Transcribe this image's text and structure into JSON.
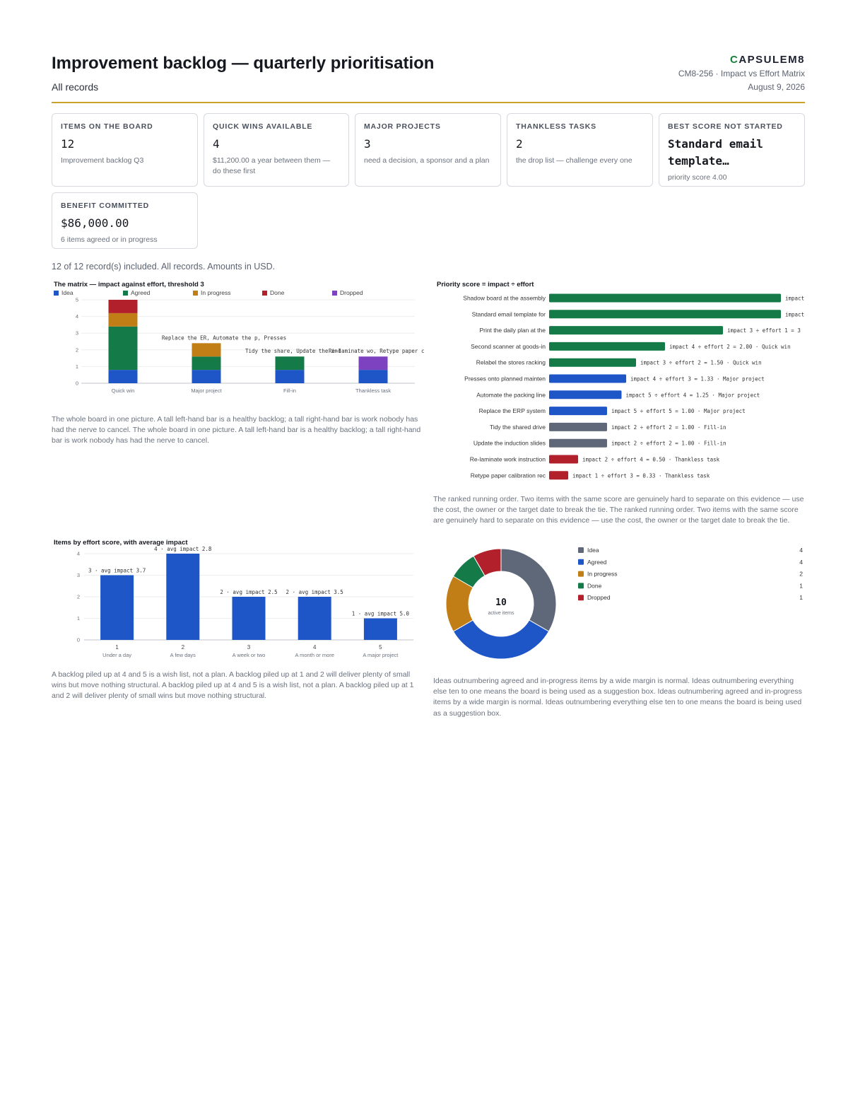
{
  "header": {
    "title": "Improvement backlog — quarterly prioritisation",
    "subtitle": "All records",
    "brand_first": "C",
    "brand_rest": "APSULEM8",
    "reference": "CM8-256 · Impact vs Effort Matrix",
    "date": "August 9, 2026"
  },
  "kpis": [
    {
      "label": "Items on the board",
      "value": "12",
      "note": "Improvement backlog Q3"
    },
    {
      "label": "Quick wins available",
      "value": "4",
      "note": "$11,200.00 a year between them — do these first"
    },
    {
      "label": "Major projects",
      "value": "3",
      "note": "need a decision, a sponsor and a plan"
    },
    {
      "label": "Thankless tasks",
      "value": "2",
      "note": "the drop list — challenge every one"
    },
    {
      "label": "Best score not started",
      "value": "Standard email template…",
      "note": "priority score 4.00"
    },
    {
      "label": "Benefit committed",
      "value": "$86,000.00",
      "note": "6 items agreed or in progress"
    }
  ],
  "scope_note": "12 of 12 record(s) included. All records. Amounts in USD.",
  "colors": {
    "idea": "#1e56c8",
    "agreed": "#137a48",
    "in_progress": "#c17d16",
    "done": "#b2202b",
    "dropped": "#7c42bf",
    "grey": "#5e6878",
    "accent": "#c9a227"
  },
  "captions": {
    "matrix": "The whole board in one picture. A tall left-hand bar is a healthy backlog; a tall right-hand bar is work nobody has had the nerve to cancel. The whole board in one picture. A tall left-hand bar is a healthy backlog; a tall right-hand bar is work nobody has had the nerve to cancel.",
    "priority": "The ranked running order. Two items with the same score are genuinely hard to separate on this evidence — use the cost, the owner or the target date to break the tie. The ranked running order. Two items with the same score are genuinely hard to separate on this evidence — use the cost, the owner or the target date to break the tie.",
    "effort": "A backlog piled up at 4 and 5 is a wish list, not a plan. A backlog piled up at 1 and 2 will deliver plenty of small wins but move nothing structural. A backlog piled up at 4 and 5 is a wish list, not a plan. A backlog piled up at 1 and 2 will deliver plenty of small wins but move nothing structural.",
    "status": "Ideas outnumbering agreed and in-progress items by a wide margin is normal. Ideas outnumbering everything else ten to one means the board is being used as a suggestion box. Ideas outnumbering agreed and in-progress items by a wide margin is normal. Ideas outnumbering everything else ten to one means the board is being used as a suggestion box."
  },
  "chart_data": [
    {
      "type": "bar",
      "stacked": true,
      "title": "The matrix — impact against effort, threshold 3",
      "categories": [
        "Quick win",
        "Major project",
        "Fill-in",
        "Thankless task"
      ],
      "series": [
        {
          "name": "Idea",
          "color": "#1e56c8",
          "values": [
            0.8,
            0.8,
            0.8,
            0.8
          ]
        },
        {
          "name": "Agreed",
          "color": "#137a48",
          "values": [
            2.6,
            0.8,
            0.8,
            0
          ]
        },
        {
          "name": "In progress",
          "color": "#c17d16",
          "values": [
            0.8,
            0.8,
            0,
            0
          ]
        },
        {
          "name": "Done",
          "color": "#b2202b",
          "values": [
            0.8,
            0,
            0,
            0
          ]
        },
        {
          "name": "Dropped",
          "color": "#7c42bf",
          "values": [
            0,
            0,
            0,
            0.8
          ]
        }
      ],
      "annotations": [
        "",
        "Replace the ER, Automate the p, Presses",
        "Tidy the share, Update the ind",
        "Re-laminate wo, Retype paper c"
      ],
      "yticks": [
        0,
        1,
        2,
        3,
        4,
        5
      ],
      "ylim": [
        0,
        5
      ],
      "grid": true,
      "legend_position": "top"
    },
    {
      "type": "bar",
      "orientation": "horizontal",
      "title": "Priority score = impact ÷ effort",
      "categories": [
        "Shadow board at the assembly",
        "Standard email template for",
        "Print the daily plan at the",
        "Second scanner at goods-in",
        "Relabel the stores racking",
        "Presses onto planned mainten",
        "Automate the packing line",
        "Replace the ERP system",
        "Tidy the shared drive",
        "Update the induction slides",
        "Re-laminate work instruction",
        "Retype paper calibration rec"
      ],
      "values": [
        4.0,
        4.0,
        3.0,
        2.0,
        1.5,
        1.33,
        1.25,
        1.0,
        1.0,
        1.0,
        0.5,
        0.33
      ],
      "colors": [
        "#137a48",
        "#137a48",
        "#137a48",
        "#137a48",
        "#137a48",
        "#1e56c8",
        "#1e56c8",
        "#1e56c8",
        "#5e6878",
        "#5e6878",
        "#b2202b",
        "#b2202b"
      ],
      "labels": [
        "impact",
        "impact",
        "impact 3 ÷ effort 1 = 3",
        "impact 4 ÷ effort 2 = 2.00 · Quick win",
        "impact 3 ÷ effort 2 = 1.50 · Quick win",
        "impact 4 ÷ effort 3 = 1.33 · Major project",
        "impact 5 ÷ effort 4 = 1.25 · Major project",
        "impact 5 ÷ effort 5 = 1.00 · Major project",
        "impact 2 ÷ effort 2 = 1.00 · Fill-in",
        "impact 2 ÷ effort 2 = 1.00 · Fill-in",
        "impact 2 ÷ effort 4 = 0.50 · Thankless task",
        "impact 1 ÷ effort 3 = 0.33 · Thankless task"
      ]
    },
    {
      "type": "bar",
      "title": "Items by effort score, with average impact",
      "categories": [
        "1",
        "2",
        "3",
        "4",
        "5"
      ],
      "sublabels": [
        "Under a day",
        "A few days",
        "A week or two",
        "A month or more",
        "A major project"
      ],
      "values": [
        3,
        4,
        2,
        2,
        1
      ],
      "labels": [
        "3 · avg impact 3.7",
        "4 · avg impact 2.8",
        "2 · avg impact 2.5",
        "2 · avg impact 3.5",
        "1 · avg impact 5.0"
      ],
      "yticks": [
        0,
        1,
        2,
        3,
        4
      ],
      "ylim": [
        0,
        4
      ],
      "grid": true
    },
    {
      "type": "pie",
      "donut": true,
      "center_value": "10",
      "center_label": "active items",
      "categories": [
        "Idea",
        "Agreed",
        "In progress",
        "Done",
        "Dropped"
      ],
      "values": [
        4,
        4,
        2,
        1,
        1
      ],
      "colors": [
        "#5e6878",
        "#1e56c8",
        "#c17d16",
        "#137a48",
        "#b2202b"
      ],
      "legend_position": "right"
    }
  ]
}
